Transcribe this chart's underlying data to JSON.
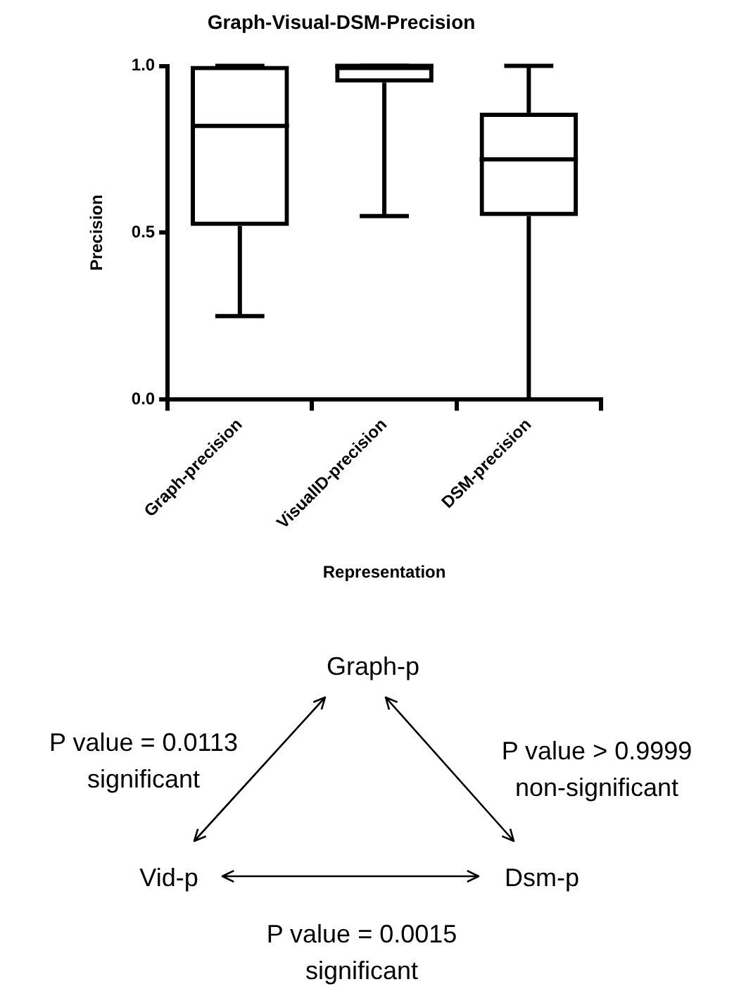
{
  "chart_data": {
    "type": "box",
    "title": "Graph-Visual-DSM-Precision",
    "xlabel": "Representation",
    "ylabel": "Precision",
    "categories": [
      "Graph-precision",
      "VisualID-precision",
      "DSM-precision"
    ],
    "boxes": [
      {
        "low": 0.25,
        "q1": 0.52,
        "median": 0.82,
        "q3": 1.0,
        "high": 1.0
      },
      {
        "low": 0.55,
        "q1": 0.95,
        "median": 1.0,
        "q3": 1.0,
        "high": 1.0
      },
      {
        "low": 0.0,
        "q1": 0.55,
        "median": 0.72,
        "q3": 0.86,
        "high": 1.0
      }
    ],
    "color": "#000000",
    "ylim": [
      0,
      1.0
    ],
    "yticks": [
      {
        "value": 0,
        "label": "0.0"
      },
      {
        "value": 0.5,
        "label": "0.5"
      },
      {
        "value": 1.0,
        "label": "1.0"
      }
    ],
    "grid": false,
    "legend": false,
    "annotations": [
      "Graph-p",
      "Vid-p",
      "Dsm-p",
      "P value = 0.0113\nsignificant",
      "P value > 0.9999\nnon-significant",
      "P value = 0.0015\nsignificant"
    ]
  }
}
